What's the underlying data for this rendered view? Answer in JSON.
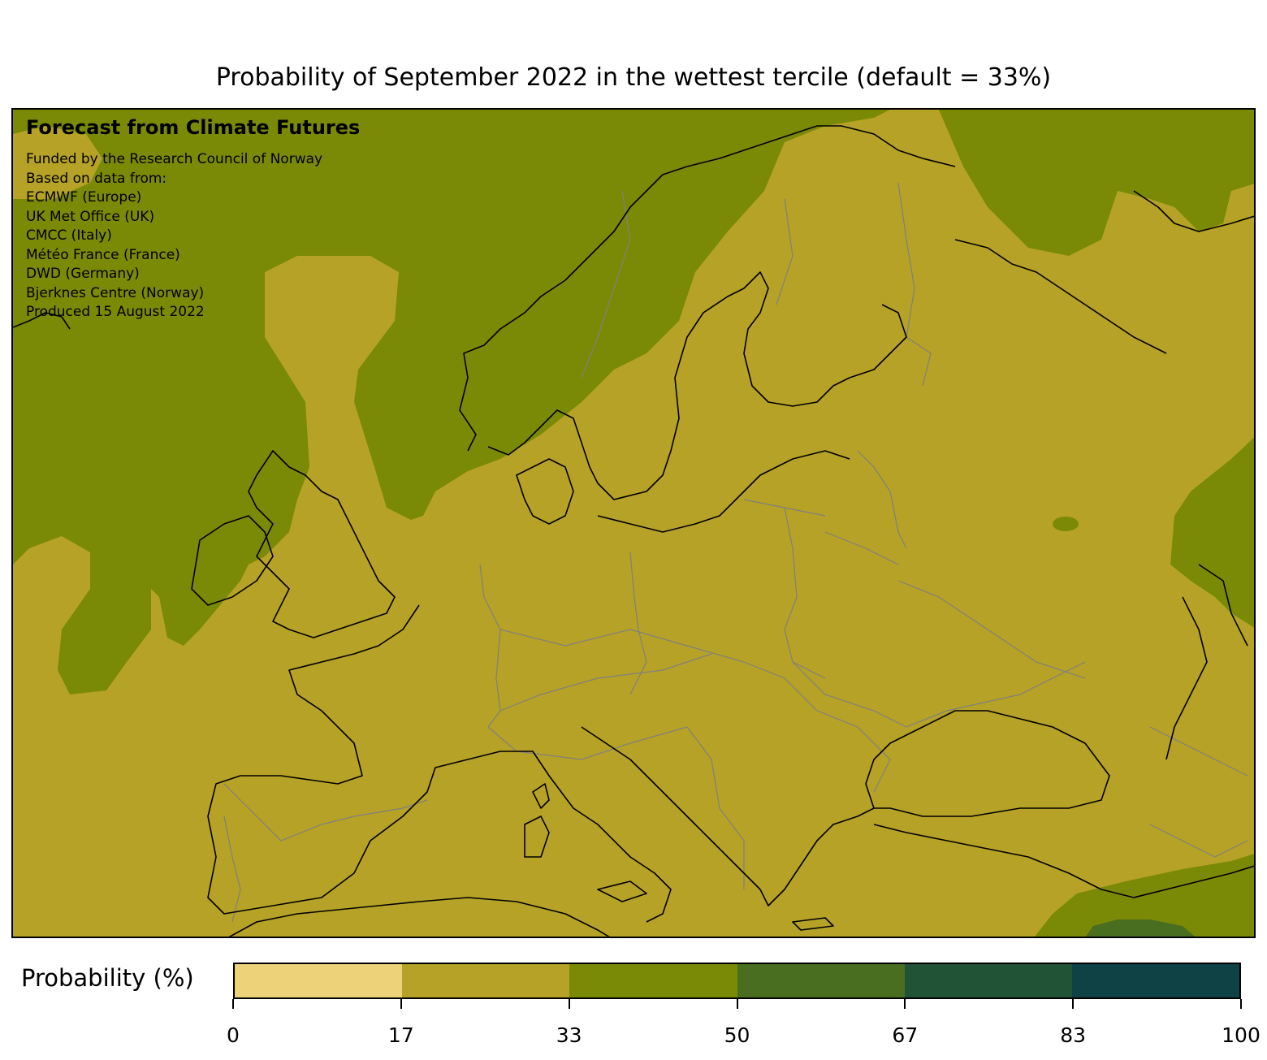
{
  "title": "Probability of September 2022 in the wettest tercile (default = 33%)",
  "credits": {
    "heading": "Forecast from Climate Futures",
    "lines": [
      "Funded by the Research Council of Norway",
      "Based on data from:",
      "ECMWF (Europe)",
      "UK Met Office (UK)",
      "CMCC (Italy)",
      "Météo France (France)",
      "DWD (Germany)",
      "Bjerknes Centre (Norway)",
      "Produced 15 August 2022"
    ]
  },
  "colorbar": {
    "label": "Probability (%)",
    "ticks": [
      "0",
      "17",
      "33",
      "50",
      "67",
      "83",
      "100"
    ],
    "tick_values": [
      0,
      17,
      33,
      50,
      67,
      83,
      100
    ],
    "colors": [
      "#edd27a",
      "#b5a226",
      "#7a8a06",
      "#4a6e20",
      "#215337",
      "#0f4244"
    ]
  },
  "map": {
    "region": "Europe",
    "colors": {
      "prob_17_33": "#b5a226",
      "prob_33_50": "#7a8a06",
      "prob_50_67": "#4a6e20",
      "coastline": "#000000",
      "borders": "#808080"
    }
  }
}
